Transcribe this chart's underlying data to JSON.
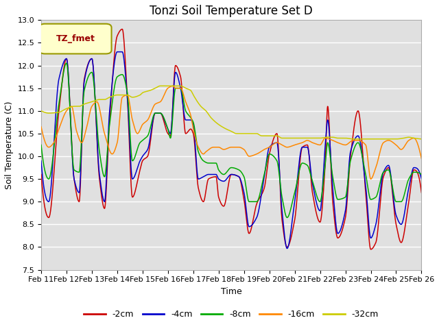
{
  "title": "Tonzi Soil Temperature Set D",
  "xlabel": "Time",
  "ylabel": "Soil Temperature (C)",
  "ylim": [
    7.5,
    13.0
  ],
  "yticks": [
    7.5,
    8.0,
    8.5,
    9.0,
    9.5,
    10.0,
    10.5,
    11.0,
    11.5,
    12.0,
    12.5,
    13.0
  ],
  "xtick_labels": [
    "Feb 11",
    "Feb 12",
    "Feb 13",
    "Feb 14",
    "Feb 15",
    "Feb 16",
    "Feb 17",
    "Feb 18",
    "Feb 19",
    "Feb 20",
    "Feb 21",
    "Feb 22",
    "Feb 23",
    "Feb 24",
    "Feb 25",
    "Feb 26"
  ],
  "legend_label": "TZ_fmet",
  "series_labels": [
    "-2cm",
    "-4cm",
    "-8cm",
    "-16cm",
    "-32cm"
  ],
  "series_colors": [
    "#cc0000",
    "#0000cc",
    "#00aa00",
    "#ff8800",
    "#cccc00"
  ],
  "plot_bg_color": "#e0e0e0",
  "fig_bg_color": "#ffffff",
  "grid_color": "#ffffff",
  "title_fontsize": 12,
  "axis_label_fontsize": 9,
  "tick_fontsize": 8
}
